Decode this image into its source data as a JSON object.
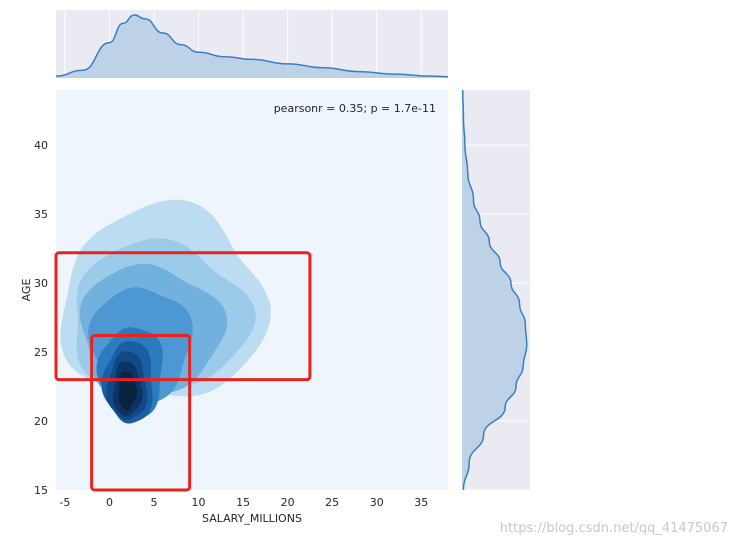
{
  "chart_data": {
    "type": "jointplot-kde",
    "xlabel": "SALARY_MILLIONS",
    "ylabel": "AGE",
    "xlim": [
      -6,
      38
    ],
    "ylim": [
      15,
      44
    ],
    "x_ticks": [
      -5,
      0,
      5,
      10,
      15,
      20,
      25,
      30,
      35
    ],
    "y_ticks": [
      15,
      20,
      25,
      30,
      35,
      40
    ],
    "annotation": "pearsonr = 0.35; p = 1.7e-11",
    "joint_kde": {
      "levels": [
        {
          "level": 1,
          "center": [
            6,
            28.5
          ],
          "rx": 11.5,
          "ry": 7.0,
          "color": "#bcdcf2"
        },
        {
          "level": 2,
          "center": [
            5.5,
            27.5
          ],
          "rx": 10.0,
          "ry": 5.4,
          "color": "#9ccbea"
        },
        {
          "level": 3,
          "center": [
            4.5,
            26.5
          ],
          "rx": 8.0,
          "ry": 4.8,
          "color": "#72b1de"
        },
        {
          "level": 4,
          "center": [
            3.5,
            25.5
          ],
          "rx": 5.6,
          "ry": 4.3,
          "color": "#4d97d2"
        },
        {
          "level": 5,
          "center": [
            2.5,
            23.5
          ],
          "rx": 3.6,
          "ry": 3.4,
          "color": "#2a7bc0"
        },
        {
          "level": 6,
          "center": [
            2.2,
            22.8
          ],
          "rx": 2.8,
          "ry": 3.0,
          "color": "#1a5fa3"
        },
        {
          "level": 7,
          "center": [
            2.0,
            22.5
          ],
          "rx": 2.2,
          "ry": 2.5,
          "color": "#124884"
        },
        {
          "level": 8,
          "center": [
            2.0,
            22.3
          ],
          "rx": 1.6,
          "ry": 2.0,
          "color": "#0c3363"
        },
        {
          "level": 9,
          "center": [
            2.0,
            22.2
          ],
          "rx": 1.0,
          "ry": 1.4,
          "color": "#0b2240"
        }
      ]
    },
    "marginal_x_kde": {
      "x": [
        -6,
        -3,
        0,
        1.5,
        2.8,
        4,
        6,
        8,
        10,
        13,
        16,
        20,
        24,
        28,
        32,
        36,
        38
      ],
      "density": [
        0.003,
        0.012,
        0.055,
        0.085,
        0.098,
        0.092,
        0.07,
        0.052,
        0.04,
        0.033,
        0.029,
        0.022,
        0.016,
        0.01,
        0.006,
        0.003,
        0.002
      ]
    },
    "marginal_y_kde": {
      "y": [
        15,
        17,
        19,
        21,
        22.5,
        24,
        25.5,
        27,
        28.5,
        30,
        31.5,
        33,
        34.5,
        36,
        38,
        40,
        42,
        44
      ],
      "density": [
        0.002,
        0.01,
        0.03,
        0.06,
        0.075,
        0.085,
        0.09,
        0.088,
        0.08,
        0.068,
        0.053,
        0.038,
        0.025,
        0.016,
        0.008,
        0.004,
        0.002,
        0.001
      ]
    },
    "highlight_boxes": [
      {
        "x": [
          -6,
          22.5
        ],
        "y": [
          23,
          32.2
        ],
        "color": "#e8231e"
      },
      {
        "x": [
          -2,
          9
        ],
        "y": [
          15,
          26.2
        ],
        "color": "#e8231e"
      }
    ],
    "colors": {
      "joint_bg": "#eef5fc",
      "marginal_bg": "#eaeaf2",
      "kde_line": "#3a7fc0",
      "kde_fill": "#a9c7e2"
    }
  },
  "watermark": "https://blog.csdn.net/qq_41475067"
}
